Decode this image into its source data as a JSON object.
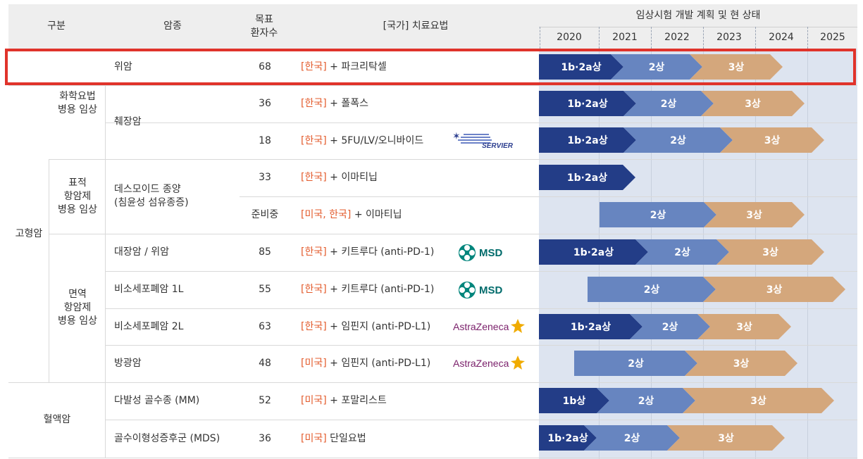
{
  "header": {
    "col_category": "구분",
    "col_cancer": "암종",
    "col_target_line1": "목표",
    "col_target_line2": "환자수",
    "col_treatment": "[국가] 치료요법",
    "col_timeline": "임상시험 개발 계획 및 현 상태",
    "years": [
      "2020",
      "2021",
      "2022",
      "2023",
      "2024",
      "2025"
    ]
  },
  "groups": {
    "solid": "고형암",
    "blood": "혈액암",
    "chemo_line1": "화학요법",
    "chemo_line2": "병용 임상",
    "targeted_line1": "표적",
    "targeted_line2": "항암제",
    "targeted_line3": "병용 임상",
    "immuno_line1": "면역",
    "immuno_line2": "항암제",
    "immuno_line3": "병용 임상"
  },
  "rows": [
    {
      "cancer": "위암",
      "target": "68",
      "country": "[한국]",
      "therapy": "+ 파크리탁셀",
      "phases": [
        "1b·2a상",
        "2상",
        "3상"
      ]
    },
    {
      "cancer": "췌장암",
      "target": "36",
      "country": "[한국]",
      "therapy": "+ 폴폭스",
      "phases": [
        "1b·2a상",
        "2상",
        "3상"
      ]
    },
    {
      "cancer": "",
      "target": "18",
      "country": "[한국]",
      "therapy": "+ 5FU/LV/오니바이드",
      "phases": [
        "1b·2a상",
        "2상",
        "3상"
      ],
      "partner": "SERVIER"
    },
    {
      "cancer_line1": "데스모이드 종양",
      "cancer_line2": "(침윤성 섬유종증)",
      "target": "33",
      "country": "[한국]",
      "therapy": "+ 이마티닙",
      "phases": [
        "1b·2a상"
      ]
    },
    {
      "cancer": "",
      "target": "준비중",
      "country": "[미국, 한국]",
      "therapy": "+ 이마티닙",
      "phases": [
        "2상",
        "3상"
      ]
    },
    {
      "cancer": "대장암 / 위암",
      "target": "85",
      "country": "[한국]",
      "therapy": "+ 키트루다 (anti-PD-1)",
      "phases": [
        "1b·2a상",
        "2상",
        "3상"
      ],
      "partner": "MSD"
    },
    {
      "cancer": "비소세포폐암 1L",
      "target": "55",
      "country": "[한국]",
      "therapy": "+ 키트루다 (anti-PD-1)",
      "phases": [
        "2상",
        "3상"
      ],
      "partner": "MSD"
    },
    {
      "cancer": "비소세포폐암 2L",
      "target": "63",
      "country": "[한국]",
      "therapy": "+ 임핀지 (anti-PD-L1)",
      "phases": [
        "1b·2a상",
        "2상",
        "3상"
      ],
      "partner": "AstraZeneca"
    },
    {
      "cancer": "방광암",
      "target": "48",
      "country": "[미국]",
      "therapy": "+ 임핀지 (anti-PD-L1)",
      "phases": [
        "2상",
        "3상"
      ],
      "partner": "AstraZeneca"
    },
    {
      "cancer": "다발성 골수종 (MM)",
      "target": "52",
      "country": "[미국]",
      "therapy": "+ 포말리스트",
      "phases": [
        "1b상",
        "2상",
        "3상"
      ]
    },
    {
      "cancer": "골수이형성증후군 (MDS)",
      "target": "36",
      "country": "[미국]",
      "therapy": "단일요법",
      "phases": [
        "1b·2a상",
        "2상",
        "3상"
      ]
    }
  ],
  "colors": {
    "phase1": "#233d87",
    "phase2": "#6785c0",
    "phase3": "#d4a77c",
    "country_text": "#e35b2c",
    "highlight_border": "#e0332b",
    "timeline_bg": "#dde4f0"
  },
  "icons": {
    "msd": "msd-logo",
    "astrazeneca": "astrazeneca-logo",
    "servier": "servier-logo"
  }
}
